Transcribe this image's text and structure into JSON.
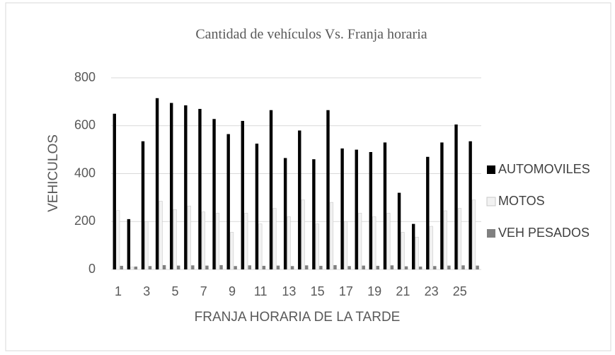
{
  "chart_data": {
    "type": "bar",
    "title": "Cantidad de vehículos Vs. Franja horaria",
    "x_label": "FRANJA HORARIA DE LA TARDE",
    "y_label": "VEHICULOS",
    "categories": [
      "1",
      null,
      "3",
      null,
      "5",
      null,
      "7",
      null,
      "9",
      null,
      "11",
      null,
      "13",
      null,
      "15",
      null,
      "17",
      null,
      "19",
      null,
      "21",
      null,
      "23",
      null,
      "25",
      null
    ],
    "series": [
      {
        "name": "AUTOMOVILES",
        "color": "#000000",
        "values": [
          650,
          210,
          535,
          715,
          695,
          685,
          670,
          628,
          565,
          620,
          525,
          665,
          465,
          580,
          460,
          665,
          505,
          500,
          490,
          530,
          320,
          190,
          470,
          530,
          605,
          535
        ]
      },
      {
        "name": "MOTOS",
        "color": "#f2f2f2",
        "values": [
          246,
          10,
          200,
          285,
          250,
          265,
          240,
          235,
          155,
          235,
          190,
          255,
          220,
          290,
          190,
          280,
          200,
          235,
          220,
          235,
          155,
          135,
          180,
          245,
          255,
          290
        ]
      },
      {
        "name": "VEH PESADOS",
        "color": "#808080",
        "values": [
          15,
          12,
          14,
          18,
          16,
          17,
          16,
          18,
          14,
          17,
          15,
          16,
          14,
          17,
          15,
          18,
          14,
          16,
          15,
          17,
          13,
          12,
          14,
          16,
          17,
          16
        ]
      }
    ],
    "ylim": [
      0,
      800
    ],
    "yticks": [
      0,
      200,
      400,
      600,
      800
    ],
    "grid": true,
    "legend": "right"
  }
}
